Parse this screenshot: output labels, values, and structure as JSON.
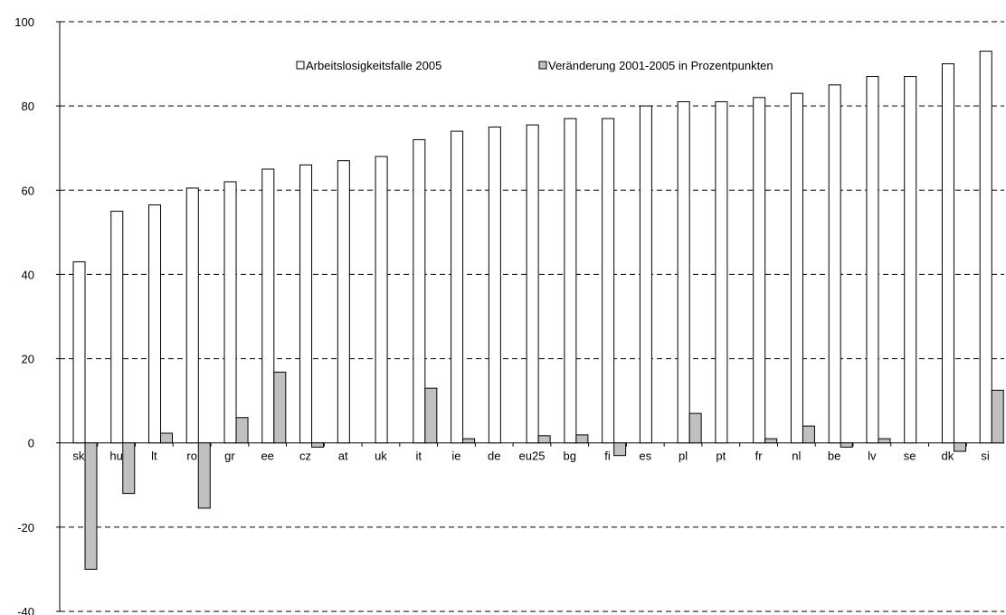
{
  "chart_data": {
    "type": "bar",
    "title": "",
    "xlabel": "",
    "ylabel": "",
    "ylim": [
      -40,
      100
    ],
    "yticks": [
      -40,
      -20,
      0,
      20,
      40,
      60,
      80,
      100
    ],
    "grid": true,
    "legend_position": "top-center",
    "categories": [
      "sk",
      "hu",
      "lt",
      "ro",
      "gr",
      "ee",
      "cz",
      "at",
      "uk",
      "it",
      "ie",
      "de",
      "eu25",
      "bg",
      "fi",
      "es",
      "pl",
      "pt",
      "fr",
      "nl",
      "be",
      "lv",
      "se",
      "dk",
      "si"
    ],
    "series": [
      {
        "name": "Arbeitslosigkeitsfalle 2005",
        "color": "#ffffff",
        "values": [
          43,
          55,
          56.5,
          60.5,
          62,
          65,
          66,
          67,
          68,
          72,
          74,
          75,
          75.5,
          77,
          77,
          80,
          81,
          81,
          82,
          83,
          85,
          87,
          87,
          90,
          93
        ]
      },
      {
        "name": "Veränderung 2001-2005 in Prozentpunkten",
        "color": "#c0c0c0",
        "values": [
          -30,
          -12,
          2.3,
          -15.5,
          6,
          16.8,
          -1,
          0,
          0,
          13,
          1,
          0,
          1.7,
          1.9,
          -3,
          0,
          7,
          0,
          1,
          4,
          -1,
          1,
          0,
          -2,
          12.5
        ]
      }
    ]
  }
}
